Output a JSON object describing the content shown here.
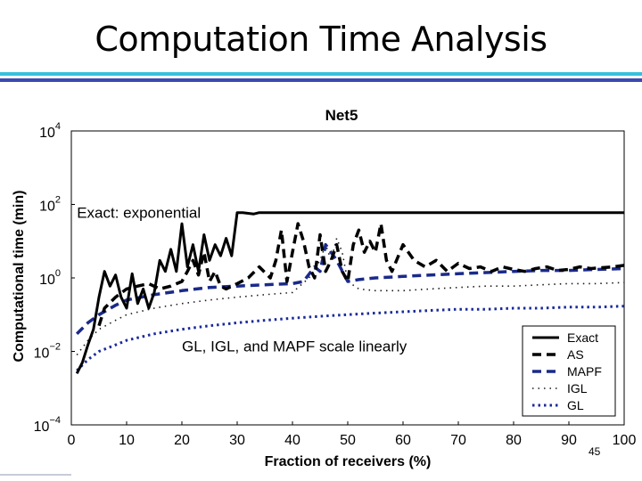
{
  "slide": {
    "title": "Computation Time Analysis",
    "page_number": "45"
  },
  "chart_data": {
    "type": "line",
    "title": "Net5",
    "xlabel": "Fraction of receivers (%)",
    "ylabel": "Computational time (min)",
    "xlim": [
      0,
      100
    ],
    "ylim": [
      0.0001,
      10000
    ],
    "yscale": "log",
    "x_ticks": [
      0,
      10,
      20,
      30,
      40,
      50,
      60,
      70,
      80,
      90,
      100
    ],
    "x_tick_labels": [
      "0",
      "10",
      "20",
      "30",
      "40",
      "50",
      "60",
      "70",
      "80",
      "90",
      "100"
    ],
    "y_ticks": [
      0.0001,
      0.01,
      1,
      100,
      10000
    ],
    "y_tick_labels": [
      {
        "base": "10",
        "exp": "−4"
      },
      {
        "base": "10",
        "exp": "−2"
      },
      {
        "base": "10",
        "exp": "0"
      },
      {
        "base": "10",
        "exp": "2"
      },
      {
        "base": "10",
        "exp": "4"
      }
    ],
    "grid": false,
    "legend_position": "bottom-right",
    "annotations": [
      {
        "text": "Exact: exponential",
        "x": 1,
        "y": 60
      },
      {
        "text": "GL, IGL, and MAPF scale linearly",
        "x": 20,
        "y": 0.014
      }
    ],
    "series": [
      {
        "name": "Exact",
        "color": "#000000",
        "style": "solid",
        "x": [
          1,
          2,
          3,
          4,
          5,
          6,
          7,
          8,
          9,
          10,
          11,
          12,
          13,
          14,
          15,
          16,
          17,
          18,
          19,
          20,
          21,
          22,
          23,
          24,
          25,
          26,
          27,
          28,
          29,
          30,
          31,
          33,
          34,
          36,
          40,
          50,
          60,
          70,
          80,
          90,
          100
        ],
        "y": [
          0.0025,
          0.005,
          0.015,
          0.04,
          0.3,
          1.5,
          0.6,
          1.2,
          0.3,
          0.15,
          1.3,
          0.2,
          0.5,
          0.15,
          0.4,
          3,
          1.5,
          6,
          1.5,
          30,
          2,
          8,
          1.5,
          15,
          3,
          8,
          4,
          12,
          4,
          60,
          60,
          55,
          60,
          60,
          60,
          60,
          60,
          60,
          60,
          60,
          60
        ]
      },
      {
        "name": "AS",
        "color": "#000000",
        "style": "dash",
        "x": [
          5,
          6,
          8,
          10,
          12,
          14,
          16,
          18,
          20,
          21,
          22,
          23,
          24,
          25,
          26,
          27,
          28,
          30,
          32,
          34,
          36,
          37,
          38,
          39,
          40,
          41,
          42,
          43,
          44,
          45,
          46,
          47,
          48,
          49,
          50,
          51,
          52,
          53,
          54,
          55,
          56,
          57,
          58,
          60,
          62,
          64,
          66,
          68,
          70,
          72,
          74,
          76,
          78,
          80,
          82,
          84,
          86,
          88,
          90,
          92,
          94,
          96,
          98,
          100
        ],
        "y": [
          0.05,
          0.15,
          0.3,
          0.5,
          0.6,
          0.7,
          0.5,
          0.6,
          0.8,
          1.5,
          3,
          1.2,
          5,
          0.8,
          1.5,
          0.6,
          0.5,
          0.7,
          1,
          2,
          1,
          3,
          20,
          0.8,
          5,
          30,
          10,
          2,
          1,
          15,
          1.5,
          3,
          8,
          1.5,
          0.8,
          8,
          20,
          5,
          10,
          5,
          30,
          3,
          1.5,
          8,
          3,
          2,
          3,
          1.5,
          2.5,
          1.8,
          2,
          1.5,
          2,
          1.7,
          1.5,
          1.8,
          2,
          1.6,
          1.7,
          2,
          1.8,
          1.9,
          2,
          2.2
        ]
      },
      {
        "name": "MAPF",
        "color": "#1a2a8a",
        "style": "dash",
        "x": [
          1,
          3,
          5,
          8,
          10,
          15,
          20,
          25,
          30,
          35,
          40,
          42,
          44,
          45,
          46,
          48,
          50,
          52,
          55,
          60,
          65,
          70,
          75,
          80,
          85,
          90,
          95,
          100
        ],
        "y": [
          0.03,
          0.06,
          0.1,
          0.18,
          0.25,
          0.35,
          0.45,
          0.55,
          0.6,
          0.65,
          0.7,
          0.8,
          2,
          1.5,
          8,
          3,
          0.8,
          0.9,
          1,
          1.1,
          1.2,
          1.3,
          1.4,
          1.5,
          1.6,
          1.6,
          1.7,
          1.8
        ]
      },
      {
        "name": "IGL",
        "color": "#1a1a1a",
        "style": "dot",
        "x": [
          1,
          3,
          5,
          8,
          10,
          15,
          20,
          25,
          30,
          35,
          40,
          43,
          45,
          46,
          47,
          48,
          49,
          50,
          52,
          55,
          60,
          65,
          70,
          75,
          80,
          85,
          90,
          95,
          100
        ],
        "y": [
          0.008,
          0.02,
          0.04,
          0.07,
          0.1,
          0.15,
          0.2,
          0.25,
          0.3,
          0.35,
          0.4,
          1,
          3,
          8,
          3,
          12,
          5,
          0.8,
          0.5,
          0.45,
          0.45,
          0.5,
          0.55,
          0.6,
          0.6,
          0.65,
          0.7,
          0.7,
          0.75
        ]
      },
      {
        "name": "GL",
        "color": "#1a2a9a",
        "style": "thickdot",
        "x": [
          1,
          3,
          5,
          8,
          10,
          15,
          20,
          25,
          30,
          35,
          40,
          45,
          50,
          55,
          60,
          65,
          70,
          75,
          80,
          85,
          90,
          95,
          100
        ],
        "y": [
          0.003,
          0.006,
          0.01,
          0.015,
          0.02,
          0.03,
          0.04,
          0.05,
          0.06,
          0.07,
          0.08,
          0.09,
          0.1,
          0.11,
          0.12,
          0.13,
          0.14,
          0.14,
          0.15,
          0.15,
          0.16,
          0.16,
          0.17
        ]
      }
    ]
  }
}
